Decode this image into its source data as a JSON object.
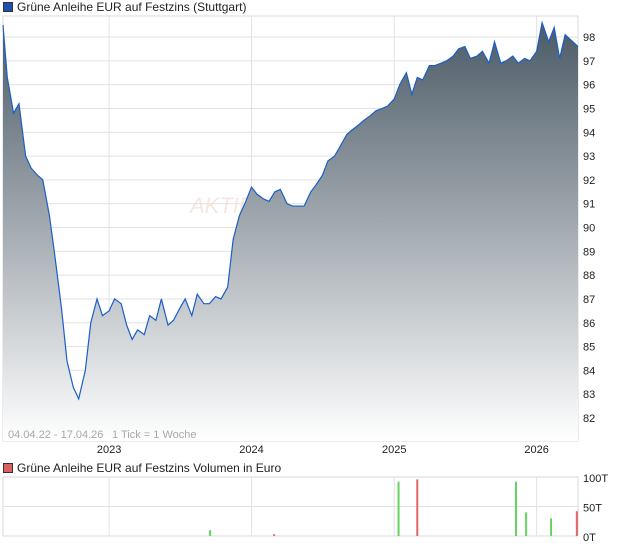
{
  "chart_data": [
    {
      "type": "area",
      "title": "Grüne Anleihe EUR auf Festzins (Stuttgart)",
      "date_range_label": "04.04.22 - 17.04.26",
      "tick_label": "1 Tick = 1 Woche",
      "watermark": "AKTIE",
      "x_range": [
        "2022-04-04",
        "2026-04-17"
      ],
      "x_ticks": [
        "2023",
        "2024",
        "2025",
        "2026"
      ],
      "ylim": [
        81,
        99
      ],
      "y_ticks": [
        82,
        83,
        84,
        85,
        86,
        87,
        88,
        89,
        90,
        91,
        92,
        93,
        94,
        95,
        96,
        97,
        98
      ],
      "y_axis_side": "right",
      "grid": true,
      "colors": {
        "line": "#1a5fc8",
        "area_top": "#4b5a66",
        "area_bottom": "#ffffff",
        "legend": "#1f4fb0"
      },
      "series": [
        {
          "name": "Grüne Anleihe EUR auf Festzins (Stuttgart)",
          "x": [
            "2022-04-04",
            "2022-04-15",
            "2022-05-01",
            "2022-05-15",
            "2022-06-01",
            "2022-06-15",
            "2022-07-01",
            "2022-07-15",
            "2022-08-01",
            "2022-08-15",
            "2022-09-01",
            "2022-09-15",
            "2022-10-01",
            "2022-10-15",
            "2022-11-01",
            "2022-11-15",
            "2022-12-01",
            "2022-12-15",
            "2023-01-01",
            "2023-01-15",
            "2023-02-01",
            "2023-02-15",
            "2023-03-01",
            "2023-03-15",
            "2023-04-01",
            "2023-04-15",
            "2023-05-01",
            "2023-05-15",
            "2023-06-01",
            "2023-06-15",
            "2023-07-01",
            "2023-07-15",
            "2023-08-01",
            "2023-08-15",
            "2023-09-01",
            "2023-09-15",
            "2023-10-01",
            "2023-10-15",
            "2023-11-01",
            "2023-11-15",
            "2023-12-01",
            "2023-12-15",
            "2024-01-01",
            "2024-01-15",
            "2024-02-01",
            "2024-02-15",
            "2024-03-01",
            "2024-03-15",
            "2024-04-01",
            "2024-04-15",
            "2024-05-01",
            "2024-05-15",
            "2024-06-01",
            "2024-06-15",
            "2024-07-01",
            "2024-07-15",
            "2024-08-01",
            "2024-08-15",
            "2024-09-01",
            "2024-09-15",
            "2024-10-01",
            "2024-10-15",
            "2024-11-01",
            "2024-11-15",
            "2024-12-01",
            "2024-12-15",
            "2025-01-01",
            "2025-01-15",
            "2025-02-01",
            "2025-02-15",
            "2025-03-01",
            "2025-03-15",
            "2025-04-01",
            "2025-04-15",
            "2025-05-01",
            "2025-05-15",
            "2025-06-01",
            "2025-06-15",
            "2025-07-01",
            "2025-07-15",
            "2025-08-01",
            "2025-08-15",
            "2025-09-01",
            "2025-09-15",
            "2025-10-01",
            "2025-10-15",
            "2025-11-01",
            "2025-11-15",
            "2025-12-01",
            "2025-12-15",
            "2026-01-01",
            "2026-01-15",
            "2026-02-01",
            "2026-02-15",
            "2026-03-01",
            "2026-03-15",
            "2026-04-17"
          ],
          "y": [
            98.5,
            96.3,
            94.8,
            95.2,
            93,
            92.5,
            92.2,
            92,
            90.5,
            88.8,
            86.6,
            84.4,
            83.3,
            82.8,
            84,
            86,
            87,
            86.3,
            86.5,
            87,
            86.8,
            85.9,
            85.3,
            85.7,
            85.5,
            86.3,
            86.1,
            87,
            85.9,
            86.1,
            86.6,
            87,
            86.3,
            87.2,
            86.8,
            86.8,
            87.1,
            87,
            87.5,
            89.5,
            90.5,
            91,
            91.7,
            91.4,
            91.2,
            91.1,
            91.5,
            91.6,
            91,
            90.9,
            90.9,
            90.9,
            91.5,
            91.8,
            92.2,
            92.8,
            93,
            93.4,
            93.9,
            94.1,
            94.3,
            94.5,
            94.7,
            94.9,
            95,
            95.1,
            95.4,
            96,
            96.5,
            95.6,
            96.3,
            96.2,
            96.8,
            96.8,
            96.9,
            97,
            97.2,
            97.5,
            97.6,
            97.1,
            97.2,
            97.4,
            96.9,
            97.8,
            96.9,
            97,
            97.2,
            96.9,
            97.1,
            97,
            97.4,
            98.6,
            97.8,
            98.4,
            97.1,
            98.1,
            97.6
          ]
        }
      ]
    },
    {
      "type": "bar",
      "title": "Grüne Anleihe EUR auf Festzins Volumen in Euro",
      "ylim": [
        0,
        100
      ],
      "y_ticks": [
        "0T",
        "50T",
        "100T"
      ],
      "y_tick_values": [
        0,
        50,
        100
      ],
      "unit": "T",
      "colors": {
        "up": "#66d35f",
        "down": "#e06767",
        "legend": "#d96060"
      },
      "bars": [
        {
          "date": "2023-09-17",
          "value": 10,
          "direction": "up"
        },
        {
          "date": "2024-02-28",
          "value": 3,
          "direction": "down"
        },
        {
          "date": "2025-01-12",
          "value": 92,
          "direction": "up"
        },
        {
          "date": "2025-03-01",
          "value": 96,
          "direction": "down"
        },
        {
          "date": "2025-11-09",
          "value": 92,
          "direction": "up"
        },
        {
          "date": "2025-12-05",
          "value": 40,
          "direction": "up"
        },
        {
          "date": "2026-02-07",
          "value": 30,
          "direction": "up"
        },
        {
          "date": "2026-04-14",
          "value": 42,
          "direction": "down"
        }
      ]
    }
  ]
}
